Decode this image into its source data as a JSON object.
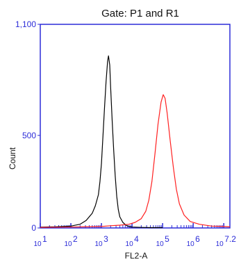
{
  "chart_data": {
    "type": "line",
    "title": "Gate: P1 and R1",
    "xlabel": "FL2-A",
    "ylabel": "Count",
    "x_scale": "log",
    "x_range": [
      1,
      7.2
    ],
    "y_range": [
      0,
      1100
    ],
    "x_ticks": [
      {
        "pos": 1,
        "base": "10",
        "exp": "1"
      },
      {
        "pos": 2,
        "base": "10",
        "exp": "2"
      },
      {
        "pos": 3,
        "base": "10",
        "exp": "3"
      },
      {
        "pos": 4,
        "base": "10",
        "exp": "4"
      },
      {
        "pos": 5,
        "base": "10",
        "exp": "5"
      },
      {
        "pos": 6,
        "base": "10",
        "exp": "6"
      },
      {
        "pos": 7,
        "base": "10",
        "exp": "7.2"
      }
    ],
    "y_ticks": [
      {
        "pos": 0,
        "label": "0"
      },
      {
        "pos": 500,
        "label": "500"
      },
      {
        "pos": 1100,
        "label": "1,100"
      }
    ],
    "grid": false,
    "legend": "none",
    "colors": {
      "frame": "#2b2bd8",
      "black_series": "#000000",
      "red_series": "#ff2020"
    },
    "series": [
      {
        "color": "#000000",
        "points": [
          [
            1.0,
            4
          ],
          [
            1.5,
            6
          ],
          [
            2.0,
            10
          ],
          [
            2.3,
            20
          ],
          [
            2.5,
            40
          ],
          [
            2.7,
            80
          ],
          [
            2.8,
            120
          ],
          [
            2.9,
            180
          ],
          [
            2.95,
            250
          ],
          [
            3.0,
            350
          ],
          [
            3.05,
            500
          ],
          [
            3.1,
            650
          ],
          [
            3.15,
            790
          ],
          [
            3.2,
            900
          ],
          [
            3.23,
            930
          ],
          [
            3.27,
            880
          ],
          [
            3.3,
            760
          ],
          [
            3.35,
            580
          ],
          [
            3.4,
            420
          ],
          [
            3.45,
            280
          ],
          [
            3.5,
            170
          ],
          [
            3.55,
            100
          ],
          [
            3.6,
            60
          ],
          [
            3.7,
            30
          ],
          [
            3.8,
            15
          ],
          [
            3.9,
            8
          ],
          [
            4.0,
            5
          ],
          [
            4.3,
            3
          ],
          [
            4.6,
            2
          ],
          [
            5.0,
            2
          ]
        ]
      },
      {
        "color": "#ff2020",
        "points": [
          [
            1.0,
            3
          ],
          [
            2.0,
            5
          ],
          [
            3.0,
            8
          ],
          [
            3.3,
            12
          ],
          [
            3.6,
            15
          ],
          [
            3.9,
            20
          ],
          [
            4.1,
            30
          ],
          [
            4.3,
            50
          ],
          [
            4.45,
            90
          ],
          [
            4.55,
            150
          ],
          [
            4.65,
            250
          ],
          [
            4.75,
            400
          ],
          [
            4.85,
            560
          ],
          [
            4.95,
            680
          ],
          [
            5.02,
            720
          ],
          [
            5.08,
            700
          ],
          [
            5.15,
            620
          ],
          [
            5.25,
            470
          ],
          [
            5.35,
            330
          ],
          [
            5.45,
            210
          ],
          [
            5.55,
            130
          ],
          [
            5.7,
            70
          ],
          [
            5.9,
            35
          ],
          [
            6.2,
            20
          ],
          [
            6.6,
            10
          ],
          [
            7.0,
            8
          ],
          [
            7.2,
            6
          ]
        ]
      }
    ]
  }
}
